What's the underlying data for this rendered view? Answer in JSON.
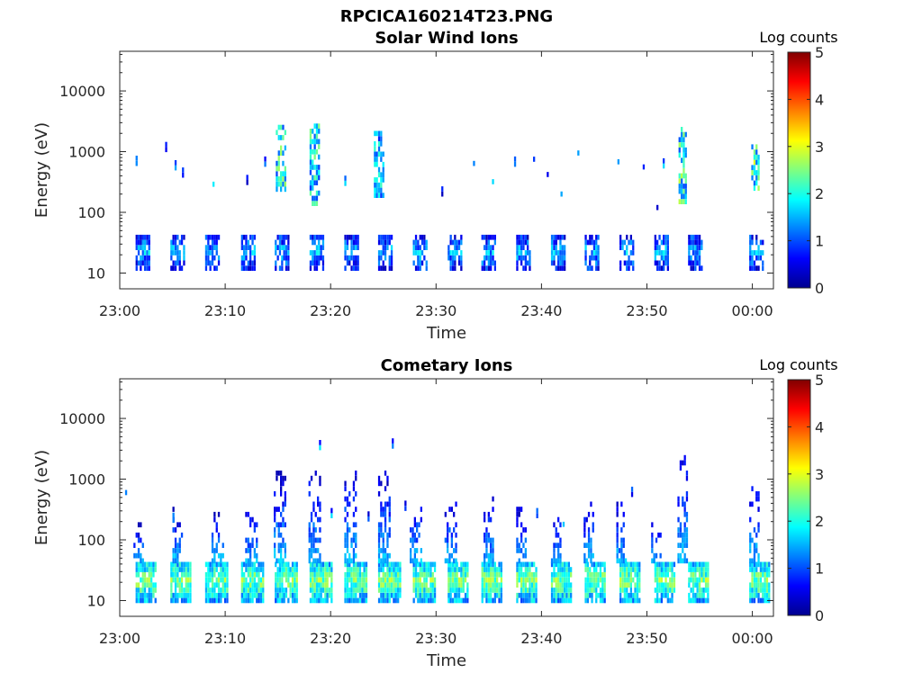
{
  "figure_title": "RPCICA160214T23.PNG",
  "chart_data": [
    {
      "type": "heatmap",
      "title": "Solar Wind Ions",
      "xlabel": "Time",
      "ylabel": "Energy (eV)",
      "x_ticks": [
        "23:00",
        "23:10",
        "23:20",
        "23:30",
        "23:40",
        "23:50",
        "00:00"
      ],
      "x_range_minutes": [
        0,
        62
      ],
      "y_scale": "log",
      "y_ticks": [
        "10",
        "100",
        "1000",
        "10000"
      ],
      "y_range": [
        5.5,
        45000
      ],
      "colorbar": {
        "label": "Log counts",
        "range": [
          0,
          5
        ],
        "ticks": [
          "0",
          "1",
          "2",
          "3",
          "4",
          "5"
        ],
        "colormap": "jet"
      },
      "grid": false,
      "low_band": {
        "energy_range": [
          12,
          40
        ],
        "peak_log_counts": 2.0,
        "bursts_start_minute": [
          1.5,
          4.8,
          8.1,
          11.5,
          14.7,
          18.0,
          21.3,
          24.5,
          27.8,
          31.1,
          34.3,
          37.6,
          40.9,
          44.1,
          47.4,
          50.7,
          53.9,
          59.7
        ]
      },
      "high_energy_events": [
        {
          "minute": 15.2,
          "energy_range": [
            240,
            2600
          ],
          "peak_log_counts": 2.7
        },
        {
          "minute": 18.4,
          "energy_range": [
            140,
            2700
          ],
          "peak_log_counts": 2.6
        },
        {
          "minute": 24.5,
          "energy_range": [
            190,
            2400
          ],
          "peak_log_counts": 2.2
        },
        {
          "minute": 53.4,
          "energy_range": [
            150,
            2700
          ],
          "peak_log_counts": 2.8
        },
        {
          "minute": 60.3,
          "energy_range": [
            250,
            1300
          ],
          "peak_log_counts": 3.0
        }
      ],
      "sparse_points": [
        {
          "minute": 1.5,
          "energy": 640
        },
        {
          "minute": 4.3,
          "energy": 1080
        },
        {
          "minute": 5.2,
          "energy": 540
        },
        {
          "minute": 5.9,
          "energy": 410
        },
        {
          "minute": 8.8,
          "energy": 290
        },
        {
          "minute": 12.0,
          "energy": 310
        },
        {
          "minute": 13.7,
          "energy": 620
        },
        {
          "minute": 21.3,
          "energy": 300
        },
        {
          "minute": 30.5,
          "energy": 200
        },
        {
          "minute": 33.5,
          "energy": 640
        },
        {
          "minute": 35.3,
          "energy": 320
        },
        {
          "minute": 37.4,
          "energy": 620
        },
        {
          "minute": 39.2,
          "energy": 750
        },
        {
          "minute": 40.5,
          "energy": 420
        },
        {
          "minute": 41.8,
          "energy": 200
        },
        {
          "minute": 43.4,
          "energy": 950
        },
        {
          "minute": 47.2,
          "energy": 680
        },
        {
          "minute": 49.6,
          "energy": 560
        },
        {
          "minute": 50.9,
          "energy": 120
        },
        {
          "minute": 51.5,
          "energy": 580
        }
      ]
    },
    {
      "type": "heatmap",
      "title": "Cometary Ions",
      "xlabel": "Time",
      "ylabel": "Energy (eV)",
      "x_ticks": [
        "23:00",
        "23:10",
        "23:20",
        "23:30",
        "23:40",
        "23:50",
        "00:00"
      ],
      "x_range_minutes": [
        0,
        62
      ],
      "y_scale": "log",
      "y_ticks": [
        "10",
        "100",
        "1000",
        "10000"
      ],
      "y_range": [
        5.5,
        45000
      ],
      "colorbar": {
        "label": "Log counts",
        "range": [
          0,
          5
        ],
        "ticks": [
          "0",
          "1",
          "2",
          "3",
          "4",
          "5"
        ],
        "colormap": "jet"
      },
      "grid": false,
      "low_band": {
        "energy_range": [
          10,
          45
        ],
        "peak_log_counts": 3.0,
        "bursts_start_minute": [
          1.5,
          4.8,
          8.1,
          11.5,
          14.7,
          18.0,
          21.3,
          24.5,
          27.8,
          31.1,
          34.3,
          37.6,
          40.9,
          44.1,
          47.4,
          50.7,
          53.9,
          59.7
        ]
      },
      "tails": [
        {
          "minute": 1.8,
          "top_energy": 180
        },
        {
          "minute": 5.5,
          "top_energy": 320
        },
        {
          "minute": 9.2,
          "top_energy": 280
        },
        {
          "minute": 12.4,
          "top_energy": 300
        },
        {
          "minute": 15.1,
          "top_energy": 1300
        },
        {
          "minute": 18.4,
          "top_energy": 1400
        },
        {
          "minute": 21.8,
          "top_energy": 1400
        },
        {
          "minute": 25.0,
          "top_energy": 1300
        },
        {
          "minute": 28.0,
          "top_energy": 450
        },
        {
          "minute": 31.3,
          "top_energy": 420
        },
        {
          "minute": 35.0,
          "top_energy": 480
        },
        {
          "minute": 38.1,
          "top_energy": 340
        },
        {
          "minute": 41.4,
          "top_energy": 250
        },
        {
          "minute": 44.5,
          "top_energy": 430
        },
        {
          "minute": 47.6,
          "top_energy": 450
        },
        {
          "minute": 50.9,
          "top_energy": 250
        },
        {
          "minute": 53.4,
          "top_energy": 3100
        },
        {
          "minute": 60.2,
          "top_energy": 1200
        }
      ],
      "sparse_points": [
        {
          "minute": 18.9,
          "energy": 3300
        },
        {
          "minute": 25.8,
          "energy": 3500
        },
        {
          "minute": 0.5,
          "energy": 600
        },
        {
          "minute": 5.0,
          "energy": 210
        },
        {
          "minute": 20.0,
          "energy": 250
        },
        {
          "minute": 23.5,
          "energy": 220
        },
        {
          "minute": 27.0,
          "energy": 330
        },
        {
          "minute": 39.5,
          "energy": 250
        },
        {
          "minute": 42.0,
          "energy": 180
        },
        {
          "minute": 48.5,
          "energy": 560
        }
      ]
    }
  ]
}
